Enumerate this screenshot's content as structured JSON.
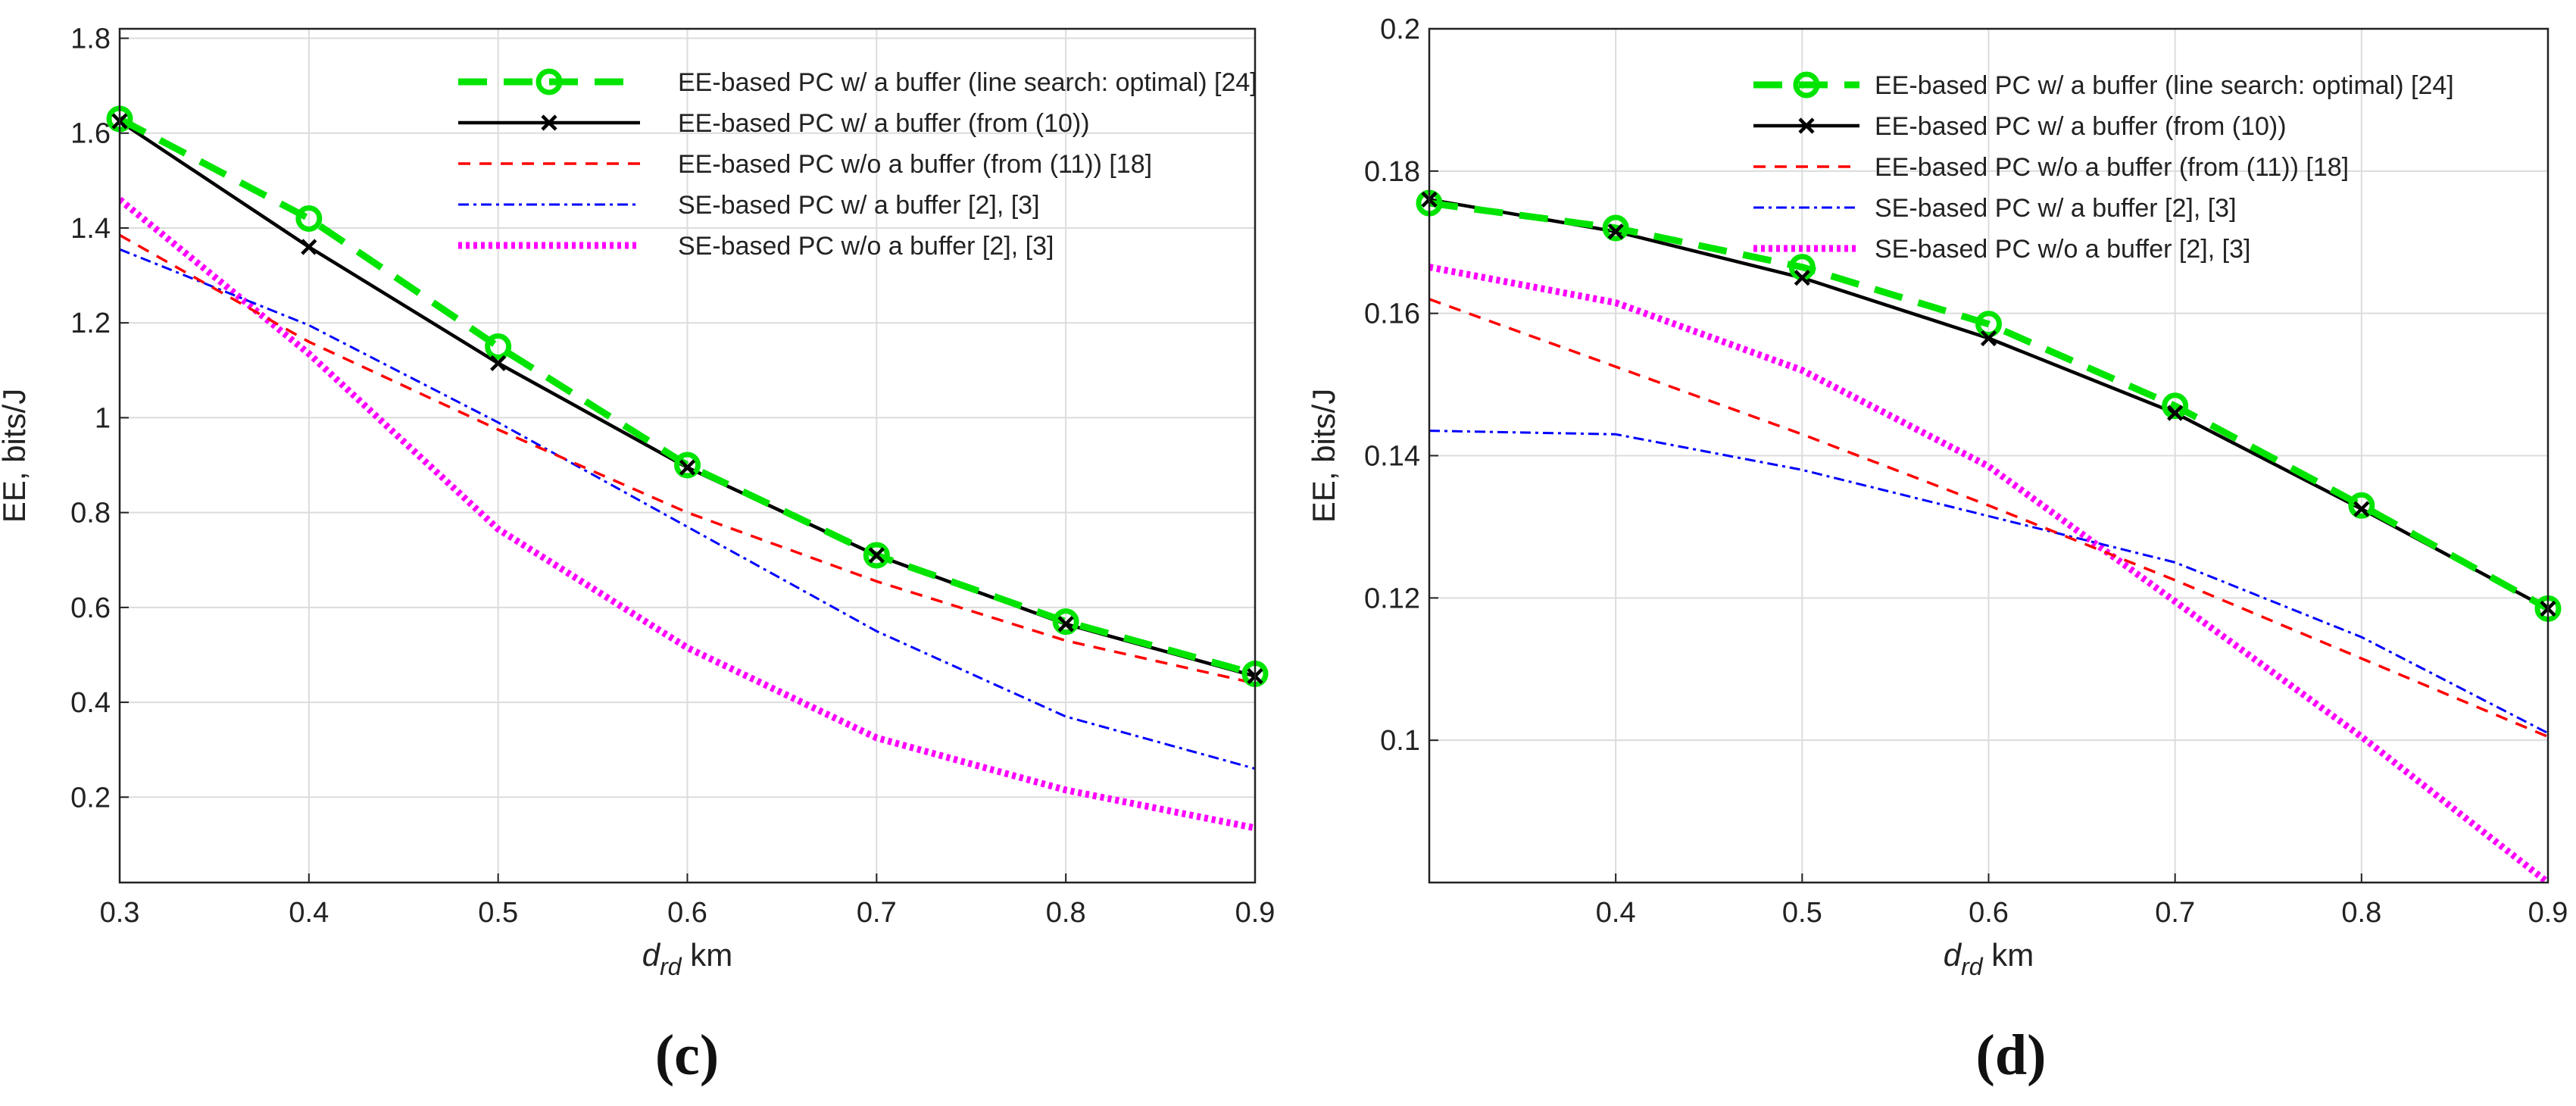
{
  "chart_data": [
    {
      "type": "line",
      "panel": "c",
      "caption": "(c)",
      "ylabel": "EE, bits/J",
      "xlabel_main": "d",
      "xlabel_sub": "rd",
      "xlabel_unit": " km",
      "xlim": [
        0.3,
        0.9
      ],
      "ylim": [
        0.02,
        1.82
      ],
      "xticks": [
        0.3,
        0.4,
        0.5,
        0.6,
        0.7,
        0.8,
        0.9
      ],
      "xtick_labels": [
        "0.3",
        "0.4",
        "0.5",
        "0.6",
        "0.7",
        "0.8",
        "0.9"
      ],
      "yticks": [
        0.2,
        0.4,
        0.6,
        0.8,
        1.0,
        1.2,
        1.4,
        1.6,
        1.8
      ],
      "ytick_labels": [
        "0.2",
        "0.4",
        "0.6",
        "0.8",
        "1",
        "1.2",
        "1.4",
        "1.6",
        "1.8"
      ],
      "grid": true,
      "legend_position": "top-right",
      "x": [
        0.3,
        0.4,
        0.5,
        0.6,
        0.7,
        0.8,
        0.9
      ],
      "series": [
        {
          "name": "EE-based PC w/ a buffer (line search: optimal) [24]",
          "color": "#00e400",
          "style": "dash-circle",
          "values": [
            1.63,
            1.42,
            1.15,
            0.9,
            0.71,
            0.57,
            0.46
          ]
        },
        {
          "name": "EE-based PC w/ a buffer (from (10))",
          "color": "#000000",
          "style": "solid-x",
          "values": [
            1.625,
            1.36,
            1.115,
            0.895,
            0.71,
            0.565,
            0.455
          ]
        },
        {
          "name": "EE-based PC w/o a buffer (from (11)) [18]",
          "color": "#ff0000",
          "style": "dashed",
          "values": [
            1.385,
            1.16,
            0.975,
            0.8,
            0.655,
            0.53,
            0.44
          ]
        },
        {
          "name": "SE-based PC w/ a buffer [2], [3]",
          "color": "#0000ff",
          "style": "dashdot",
          "values": [
            1.355,
            1.195,
            0.99,
            0.77,
            0.55,
            0.37,
            0.26
          ]
        },
        {
          "name": "SE-based PC w/o a buffer [2], [3]",
          "color": "#ff00ff",
          "style": "dotted",
          "values": [
            1.46,
            1.135,
            0.765,
            0.515,
            0.325,
            0.215,
            0.135
          ]
        }
      ]
    },
    {
      "type": "line",
      "panel": "d",
      "caption": "(d)",
      "ylabel": "EE, bits/J",
      "xlabel_main": "d",
      "xlabel_sub": "rd",
      "xlabel_unit": " km",
      "xlim": [
        0.3,
        0.9
      ],
      "ylim": [
        0.08,
        0.2
      ],
      "xticks": [
        0.4,
        0.5,
        0.6,
        0.7,
        0.8,
        0.9
      ],
      "xtick_labels": [
        "0.4",
        "0.5",
        "0.6",
        "0.7",
        "0.8",
        "0.9"
      ],
      "yticks": [
        0.1,
        0.12,
        0.14,
        0.16,
        0.18,
        0.2
      ],
      "ytick_labels": [
        "0.1",
        "0.12",
        "0.14",
        "0.16",
        "0.18",
        "0.2"
      ],
      "grid": true,
      "legend_position": "top-right",
      "x": [
        0.3,
        0.4,
        0.5,
        0.6,
        0.7,
        0.8,
        0.9
      ],
      "series": [
        {
          "name": "EE-based PC w/ a buffer (line search: optimal) [24]",
          "color": "#00e400",
          "style": "dash-circle",
          "values": [
            0.1755,
            0.172,
            0.1665,
            0.1585,
            0.147,
            0.133,
            0.1185
          ]
        },
        {
          "name": "EE-based PC w/ a buffer (from (10))",
          "color": "#000000",
          "style": "solid-x",
          "values": [
            0.176,
            0.1715,
            0.165,
            0.1565,
            0.146,
            0.1325,
            0.1185
          ]
        },
        {
          "name": "EE-based PC w/o a buffer (from (11)) [18]",
          "color": "#ff0000",
          "style": "dashed",
          "values": [
            0.162,
            0.1525,
            0.143,
            0.133,
            0.1225,
            0.1115,
            0.1005
          ]
        },
        {
          "name": "SE-based PC w/ a buffer [2], [3]",
          "color": "#0000ff",
          "style": "dashdot",
          "values": [
            0.1435,
            0.143,
            0.138,
            0.1315,
            0.125,
            0.1145,
            0.101
          ]
        },
        {
          "name": "SE-based PC w/o a buffer [2], [3]",
          "color": "#ff00ff",
          "style": "dotted",
          "values": [
            0.1665,
            0.1615,
            0.152,
            0.1385,
            0.1195,
            0.1005,
            0.08
          ]
        }
      ]
    }
  ]
}
